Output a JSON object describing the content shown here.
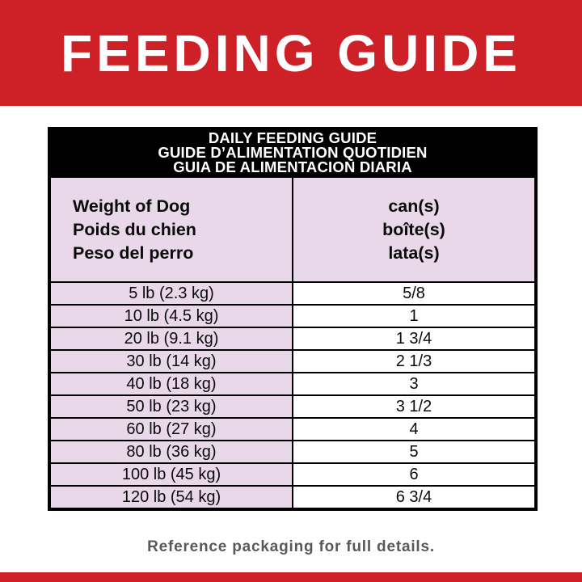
{
  "banner": {
    "title": "FEEDING GUIDE"
  },
  "table": {
    "title_lines": [
      "DAILY FEEDING GUIDE",
      "GUIDE D’ALIMENTATION QUOTIDIEN",
      "GUIA DE ALIMENTACION DIARIA"
    ],
    "weight_header_lines": [
      "Weight of Dog",
      "Poids du chien",
      "Peso del perro"
    ],
    "cans_header_lines": [
      "can(s)",
      "boîte(s)",
      "lata(s)"
    ],
    "rows": [
      {
        "weight": "5 lb (2.3 kg)",
        "cans": "5/8"
      },
      {
        "weight": "10 lb (4.5 kg)",
        "cans": "1"
      },
      {
        "weight": "20 lb (9.1 kg)",
        "cans": "1 3/4"
      },
      {
        "weight": "30 lb (14 kg)",
        "cans": "2 1/3"
      },
      {
        "weight": "40 lb (18 kg)",
        "cans": "3"
      },
      {
        "weight": "50 lb (23 kg)",
        "cans": "3 1/2"
      },
      {
        "weight": "60 lb (27 kg)",
        "cans": "4"
      },
      {
        "weight": "80 lb (36 kg)",
        "cans": "5"
      },
      {
        "weight": "100 lb (45 kg)",
        "cans": "6"
      },
      {
        "weight": "120 lb (54 kg)",
        "cans": "6 3/4"
      }
    ]
  },
  "footer": {
    "note": "Reference packaging for full details."
  },
  "colors": {
    "accent_red": "#ce2127",
    "row_pink": "#e9d8e9",
    "header_black": "#000000",
    "note_gray": "#58595b"
  }
}
